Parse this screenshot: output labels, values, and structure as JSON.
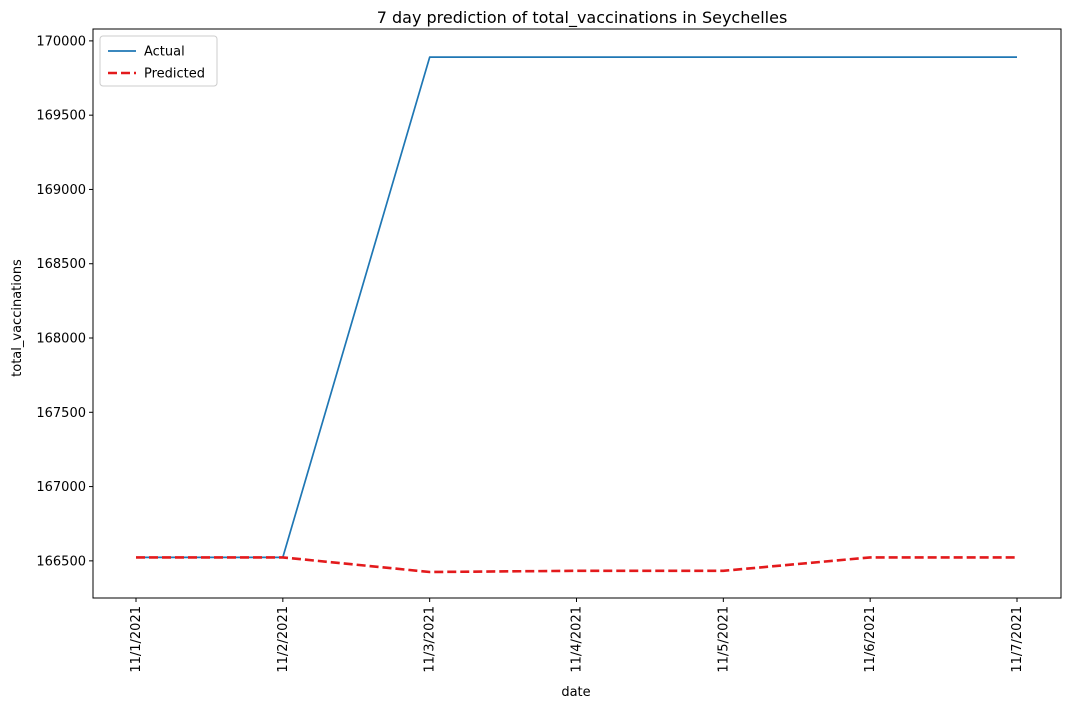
{
  "chart_data": {
    "type": "line",
    "title": "7 day prediction of total_vaccinations in Seychelles",
    "xlabel": "date",
    "ylabel": "total_vaccinations",
    "categories": [
      "11/1/2021",
      "11/2/2021",
      "11/3/2021",
      "11/4/2021",
      "11/5/2021",
      "11/6/2021",
      "11/7/2021"
    ],
    "ylim": [
      166250,
      170080
    ],
    "yticks": [
      {
        "value": 166500,
        "label": "166500"
      },
      {
        "value": 167000,
        "label": "167000"
      },
      {
        "value": 167500,
        "label": "167500"
      },
      {
        "value": 168000,
        "label": "168000"
      },
      {
        "value": 168500,
        "label": "168500"
      },
      {
        "value": 169000,
        "label": "169000"
      },
      {
        "value": 169500,
        "label": "169500"
      },
      {
        "value": 170000,
        "label": "170000"
      }
    ],
    "series": [
      {
        "name": "Actual",
        "color": "#1f77b4",
        "style": "solid",
        "values": [
          166523,
          166523,
          169891,
          169891,
          169891,
          169891,
          169891
        ]
      },
      {
        "name": "Predicted",
        "color": "#e31a1c",
        "style": "dashed",
        "values": [
          166523,
          166523,
          166425,
          166433,
          166433,
          166523,
          166523
        ]
      }
    ],
    "grid": false,
    "legend_position": "top-left"
  }
}
